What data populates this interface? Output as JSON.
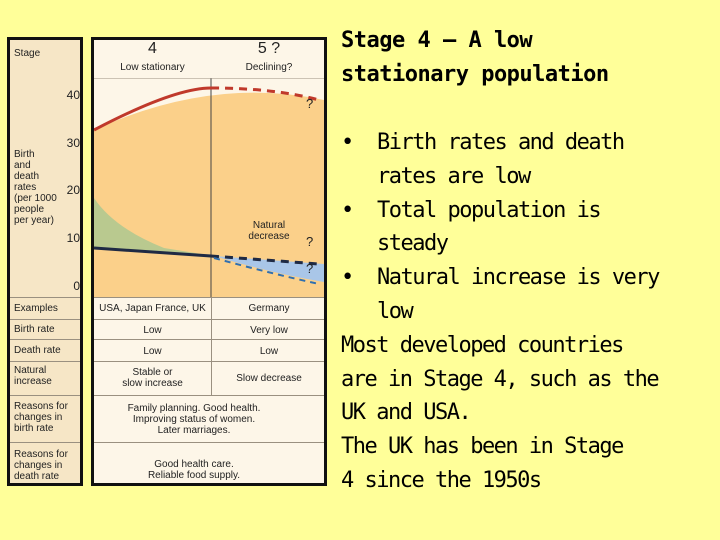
{
  "slide": {
    "title_line1": "Stage 4 – A low",
    "title_line2": "stationary population",
    "bullets": [
      {
        "line1": "Birth rates and death",
        "line2": "rates are low"
      },
      {
        "line1": "Total population is",
        "line2": "steady"
      },
      {
        "line1": "Natural increase is very",
        "line2": "low"
      }
    ],
    "paragraph_lines": [
      "Most developed countries",
      "are in Stage 4, such as the",
      "UK and USA.",
      "The UK has been in Stage",
      "4 since the 1950s"
    ],
    "bullet_glyph": "•"
  },
  "diagram": {
    "stage_label": "Stage",
    "rates_label_lines": [
      "Birth",
      "and",
      "death",
      "rates",
      "(per 1000",
      "people",
      "per year)"
    ],
    "y_ticks": [
      "40",
      "30",
      "20",
      "10",
      "0"
    ],
    "stage4": {
      "number": "4",
      "name": "Low stationary"
    },
    "stage5": {
      "number": "5 ?",
      "name": "Declining?"
    },
    "natural_decrease_lines": [
      "Natural",
      "decrease"
    ],
    "question_mark": "?",
    "rows": {
      "examples": {
        "label": "Examples",
        "s4": "USA, Japan France, UK",
        "s5": "Germany"
      },
      "birth_rate": {
        "label": "Birth rate",
        "s4": "Low",
        "s5": "Very low"
      },
      "death_rate": {
        "label": "Death rate",
        "s4": "Low",
        "s5": "Low"
      },
      "natural_increase": {
        "label_lines": [
          "Natural",
          "increase"
        ],
        "s4_lines": [
          "Stable or",
          "slow increase"
        ],
        "s5": "Slow decrease"
      },
      "reasons_birth": {
        "label_lines": [
          "Reasons for",
          "changes in",
          "birth rate"
        ],
        "text_lines": [
          "Family planning. Good health.",
          "Improving status of women.",
          "Later marriages."
        ]
      },
      "reasons_death": {
        "label_lines": [
          "Reasons for",
          "changes in",
          "death rate"
        ],
        "text_lines": [
          "Good health care.",
          "Reliable food supply."
        ]
      }
    },
    "colors": {
      "population_fill": "#fbd08a",
      "birth_rate_line": "#c0392b",
      "death_rate_line": "#1f2a44",
      "increase_fill": "#b9c98f",
      "decrease_fill": "#a9c6e8"
    }
  }
}
